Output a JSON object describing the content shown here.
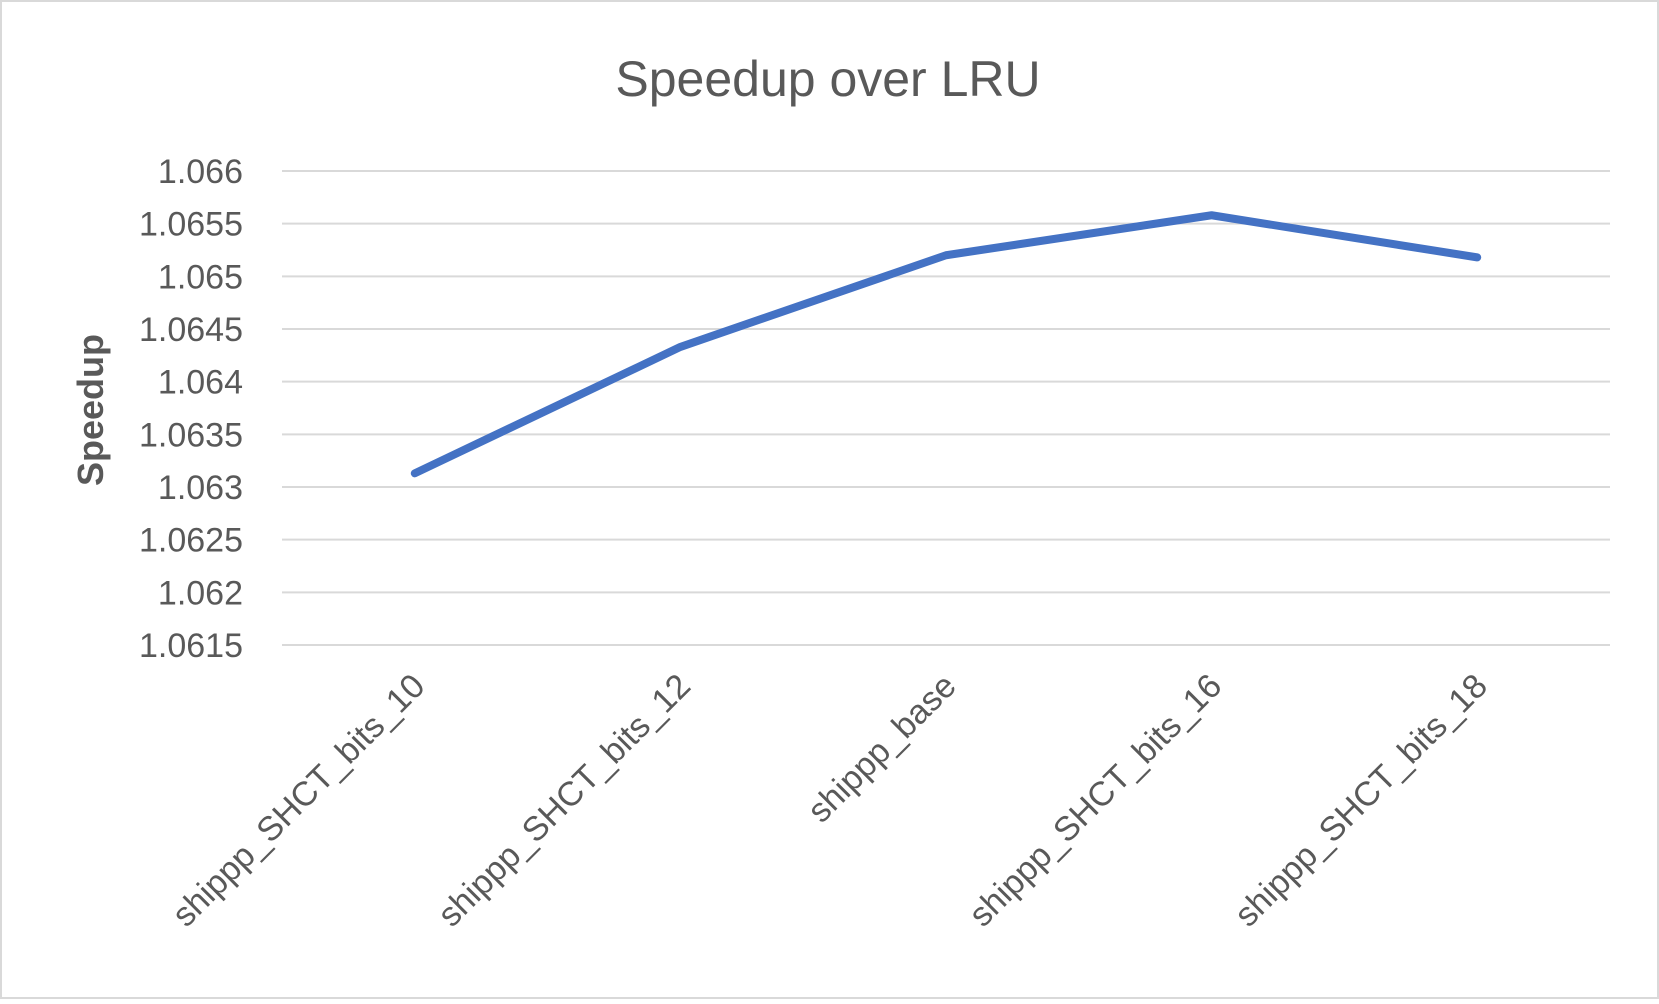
{
  "chart_data": {
    "type": "line",
    "title": "Speedup over LRU",
    "xlabel": "",
    "ylabel": "Speedup",
    "categories": [
      "shippp_SHCT_bits_10",
      "shippp_SHCT_bits_12",
      "shippp_base",
      "shippp_SHCT_bits_16",
      "shippp_SHCT_bits_18"
    ],
    "series": [
      {
        "values": [
          1.06313,
          1.06433,
          1.0652,
          1.06558,
          1.06518
        ],
        "color": "#4472C4"
      }
    ],
    "ylim": [
      1.0615,
      1.066
    ],
    "ytick_step": 0.0005,
    "yticks": [
      "1.0615",
      "1.062",
      "1.0625",
      "1.063",
      "1.0635",
      "1.064",
      "1.0645",
      "1.065",
      "1.0655",
      "1.066"
    ],
    "grid": true,
    "legend": "none"
  },
  "colors": {
    "line": "#4472C4",
    "grid": "#d9d9d9",
    "text": "#595959",
    "border": "#d9d9d9"
  }
}
